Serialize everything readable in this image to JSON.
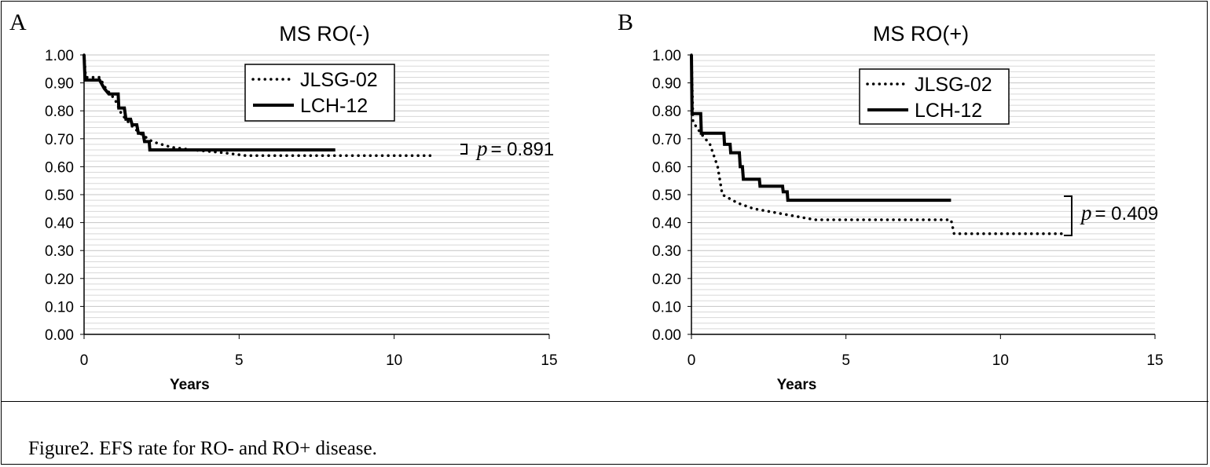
{
  "figure_caption": "Figure2. EFS rate for RO- and RO+ disease.",
  "chart_data": [
    {
      "type": "line",
      "panel_label": "A",
      "title": "MS RO(-)",
      "xlabel": "Years",
      "ylabel": "",
      "xlim": [
        0,
        15
      ],
      "ylim": [
        0,
        1
      ],
      "x_ticks": [
        "0",
        "5",
        "10",
        "15"
      ],
      "y_ticks": [
        "0.00",
        "0.10",
        "0.20",
        "0.30",
        "0.40",
        "0.50",
        "0.60",
        "0.70",
        "0.80",
        "0.90",
        "1.00"
      ],
      "grid": true,
      "legend_position": "top-center",
      "p_value_prefix": "p",
      "p_value": "= 0.891",
      "series": [
        {
          "name": "JLSG-02",
          "style": "dotted",
          "points": [
            [
              0,
              1.0
            ],
            [
              0.05,
              0.92
            ],
            [
              0.5,
              0.92
            ],
            [
              0.7,
              0.88
            ],
            [
              1.0,
              0.84
            ],
            [
              1.2,
              0.79
            ],
            [
              1.5,
              0.75
            ],
            [
              1.8,
              0.72
            ],
            [
              2.2,
              0.69
            ],
            [
              2.8,
              0.67
            ],
            [
              3.5,
              0.66
            ],
            [
              4.5,
              0.65
            ],
            [
              5.2,
              0.64
            ],
            [
              11.2,
              0.64
            ]
          ]
        },
        {
          "name": "LCH-12",
          "style": "solid",
          "points": [
            [
              0,
              1.0
            ],
            [
              0.03,
              0.91
            ],
            [
              0.5,
              0.91
            ],
            [
              0.65,
              0.88
            ],
            [
              0.8,
              0.86
            ],
            [
              1.1,
              0.86
            ],
            [
              1.12,
              0.81
            ],
            [
              1.3,
              0.81
            ],
            [
              1.35,
              0.77
            ],
            [
              1.5,
              0.77
            ],
            [
              1.55,
              0.75
            ],
            [
              1.7,
              0.75
            ],
            [
              1.75,
              0.72
            ],
            [
              1.9,
              0.72
            ],
            [
              1.95,
              0.69
            ],
            [
              2.1,
              0.69
            ],
            [
              2.12,
              0.66
            ],
            [
              8.1,
              0.66
            ]
          ]
        }
      ]
    },
    {
      "type": "line",
      "panel_label": "B",
      "title": "MS RO(+)",
      "xlabel": "Years",
      "ylabel": "",
      "xlim": [
        0,
        15
      ],
      "ylim": [
        0,
        1
      ],
      "x_ticks": [
        "0",
        "5",
        "10",
        "15"
      ],
      "y_ticks": [
        "0.00",
        "0.10",
        "0.20",
        "0.30",
        "0.40",
        "0.50",
        "0.60",
        "0.70",
        "0.80",
        "0.90",
        "1.00"
      ],
      "grid": true,
      "legend_position": "top-center",
      "p_value_prefix": "p",
      "p_value": "= 0.409",
      "series": [
        {
          "name": "JLSG-02",
          "style": "dotted",
          "points": [
            [
              0,
              1.0
            ],
            [
              0.05,
              0.76
            ],
            [
              0.3,
              0.72
            ],
            [
              0.6,
              0.68
            ],
            [
              0.85,
              0.6
            ],
            [
              1.0,
              0.5
            ],
            [
              1.5,
              0.47
            ],
            [
              2.0,
              0.45
            ],
            [
              3.0,
              0.43
            ],
            [
              4.0,
              0.41
            ],
            [
              8.4,
              0.41
            ],
            [
              8.5,
              0.36
            ],
            [
              12.0,
              0.36
            ]
          ]
        },
        {
          "name": "LCH-12",
          "style": "solid",
          "points": [
            [
              0,
              1.0
            ],
            [
              0.02,
              0.79
            ],
            [
              0.3,
              0.79
            ],
            [
              0.32,
              0.72
            ],
            [
              1.05,
              0.72
            ],
            [
              1.07,
              0.68
            ],
            [
              1.25,
              0.68
            ],
            [
              1.27,
              0.65
            ],
            [
              1.55,
              0.65
            ],
            [
              1.58,
              0.6
            ],
            [
              1.65,
              0.6
            ],
            [
              1.68,
              0.555
            ],
            [
              2.2,
              0.555
            ],
            [
              2.22,
              0.53
            ],
            [
              2.95,
              0.53
            ],
            [
              2.97,
              0.51
            ],
            [
              3.1,
              0.51
            ],
            [
              3.12,
              0.48
            ],
            [
              8.4,
              0.48
            ]
          ]
        }
      ]
    }
  ]
}
